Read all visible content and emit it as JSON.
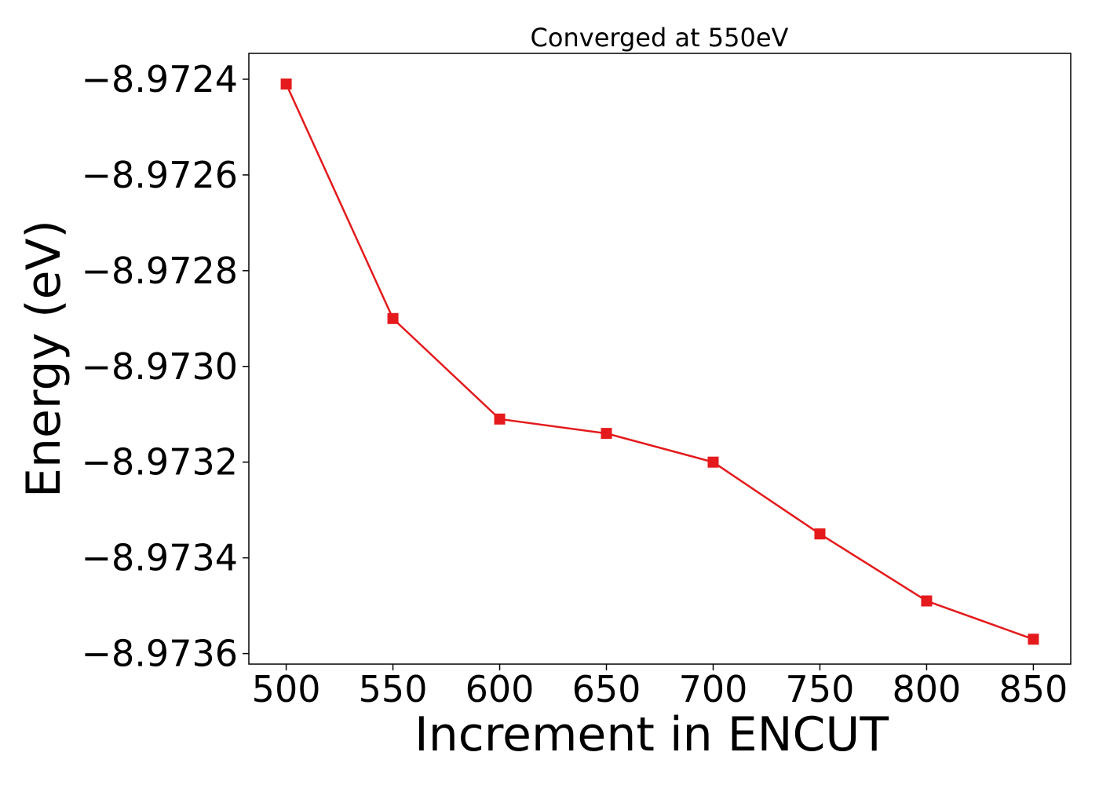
{
  "chart_data": {
    "type": "line",
    "title": "Converged at 550eV",
    "xlabel": "Increment in ENCUT",
    "ylabel": "Energy (eV)",
    "x": [
      500,
      550,
      600,
      650,
      700,
      750,
      800,
      850
    ],
    "series": [
      {
        "values": [
          -8.97241,
          -8.9729,
          -8.97311,
          -8.97314,
          -8.9732,
          -8.97335,
          -8.97349,
          -8.97357
        ],
        "color": "#e41a1c",
        "marker": "square"
      }
    ],
    "xticks": [
      500,
      550,
      600,
      650,
      700,
      750,
      800,
      850
    ],
    "xtick_labels": [
      "500",
      "550",
      "600",
      "650",
      "700",
      "750",
      "800",
      "850"
    ],
    "yticks": [
      -8.9724,
      -8.9726,
      -8.9728,
      -8.973,
      -8.9732,
      -8.9734,
      -8.9736
    ],
    "ytick_labels": [
      "−8.9724",
      "−8.9726",
      "−8.9728",
      "−8.9730",
      "−8.9732",
      "−8.9734",
      "−8.9736"
    ],
    "xlim": [
      482.5,
      867.5
    ],
    "ylim": [
      -8.973622,
      -8.972346
    ],
    "grid": false,
    "legend": "none"
  }
}
